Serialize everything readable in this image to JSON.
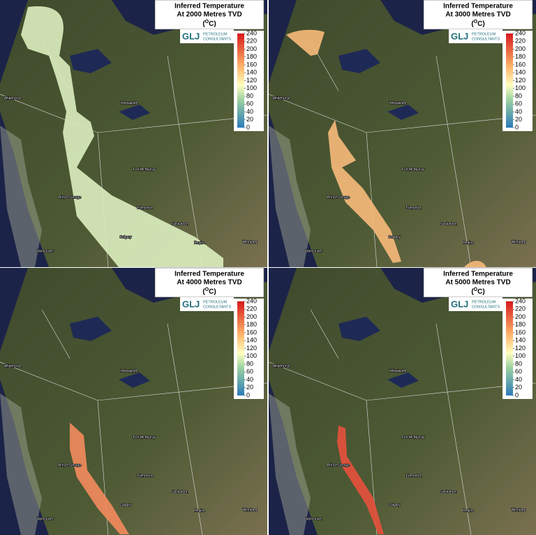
{
  "panels": [
    {
      "title": "Inferred Temperature",
      "subtitle": "At 2000 Metres TVD"
    },
    {
      "title": "Inferred Temperature",
      "subtitle": "At 3000 Metres TVD"
    },
    {
      "title": "Inferred Temperature",
      "subtitle": "At 4000 Metres TVD"
    },
    {
      "title": "Inferred Temperature",
      "subtitle": "At 5000 Metres TVD"
    }
  ],
  "unit": {
    "open": "(",
    "sup": "O",
    "close": "C)"
  },
  "logo": {
    "mark": "GLJ",
    "line1": "PETROLEUM",
    "line2": "CONSULTANTS"
  },
  "colorbar": {
    "range": [
      0,
      240
    ],
    "ticks": [
      0,
      20,
      40,
      60,
      80,
      100,
      120,
      140,
      160,
      180,
      200,
      220,
      240
    ]
  },
  "cities": [
    "Whitehorse",
    "Yellowknife",
    "Fort McMurray",
    "Prince George",
    "Edmonton",
    "Saskatoon",
    "Calgary",
    "Regina",
    "Winnipeg",
    "Vancouver"
  ]
}
